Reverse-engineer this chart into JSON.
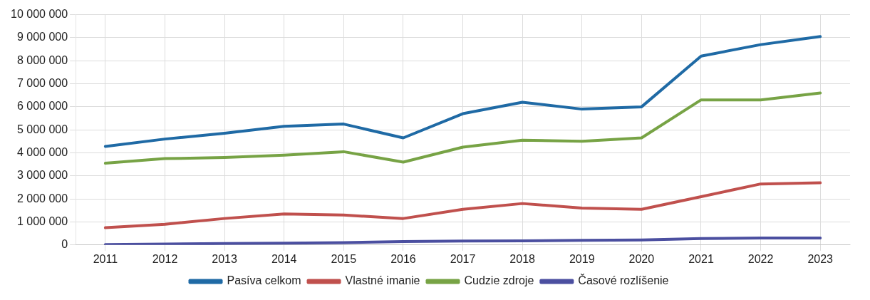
{
  "chart_data": {
    "type": "line",
    "categories": [
      "2011",
      "2012",
      "2013",
      "2014",
      "2015",
      "2016",
      "2017",
      "2018",
      "2019",
      "2020",
      "2021",
      "2022",
      "2023"
    ],
    "series": [
      {
        "name": "Pasíva celkom",
        "color": "#1f6aa5",
        "values": [
          4280000,
          4600000,
          4850000,
          5150000,
          5250000,
          4650000,
          5700000,
          6200000,
          5900000,
          6000000,
          8200000,
          8700000,
          9050000
        ]
      },
      {
        "name": "Vlastné imanie",
        "color": "#c0504d",
        "values": [
          750000,
          900000,
          1150000,
          1350000,
          1300000,
          1150000,
          1550000,
          1800000,
          1600000,
          1550000,
          2100000,
          2650000,
          2700000
        ]
      },
      {
        "name": "Cudzie zdroje",
        "color": "#77a345",
        "values": [
          3550000,
          3750000,
          3800000,
          3900000,
          4050000,
          3600000,
          4250000,
          4550000,
          4500000,
          4650000,
          6300000,
          6300000,
          6600000
        ]
      },
      {
        "name": "Časové rozlíšenie",
        "color": "#4b4fa0",
        "values": [
          20000,
          40000,
          60000,
          80000,
          100000,
          150000,
          170000,
          180000,
          200000,
          220000,
          280000,
          300000,
          300000
        ]
      }
    ],
    "ylim": [
      0,
      10000000
    ],
    "yticks": [
      {
        "value": 0,
        "label": "0"
      },
      {
        "value": 1000000,
        "label": "1 000 000"
      },
      {
        "value": 2000000,
        "label": "2 000 000"
      },
      {
        "value": 3000000,
        "label": "3 000 000"
      },
      {
        "value": 4000000,
        "label": "4 000 000"
      },
      {
        "value": 5000000,
        "label": "5 000 000"
      },
      {
        "value": 6000000,
        "label": "6 000 000"
      },
      {
        "value": 7000000,
        "label": "7 000 000"
      },
      {
        "value": 8000000,
        "label": "8 000 000"
      },
      {
        "value": 9000000,
        "label": "9 000 000"
      },
      {
        "value": 10000000,
        "label": "10 000 000"
      }
    ],
    "grid": true,
    "legend": "bottom",
    "marker": "none",
    "line_style": "solid"
  }
}
